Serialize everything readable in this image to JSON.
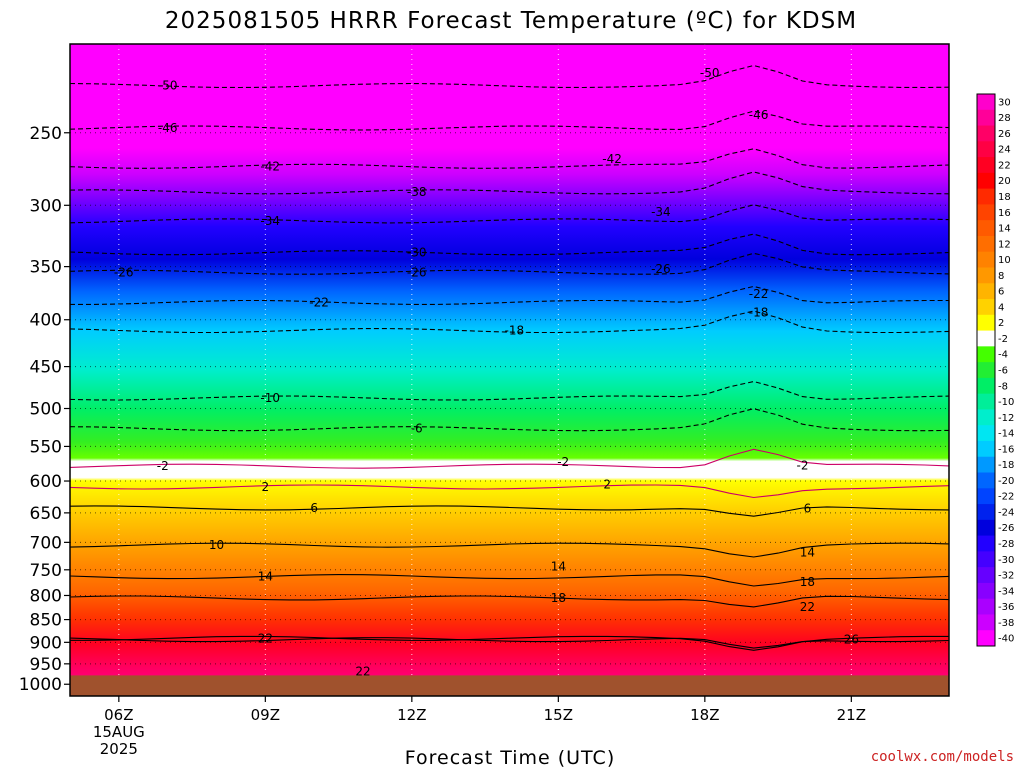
{
  "chart_data": {
    "type": "heatmap",
    "title": "2025081505 HRRR Forecast Temperature (ºC) for KDSM",
    "xlabel": "Forecast Time (UTC)",
    "ylabel": "",
    "credit": "coolwx.com/models",
    "x_ticks": [
      {
        "hour": 6,
        "label": "06Z",
        "sub": [
          "15AUG",
          "2025"
        ]
      },
      {
        "hour": 9,
        "label": "09Z",
        "sub": []
      },
      {
        "hour": 12,
        "label": "12Z",
        "sub": []
      },
      {
        "hour": 15,
        "label": "15Z",
        "sub": []
      },
      {
        "hour": 18,
        "label": "18Z",
        "sub": []
      },
      {
        "hour": 21,
        "label": "21Z",
        "sub": []
      }
    ],
    "xlim": [
      5,
      23
    ],
    "y_ticks": [
      "250",
      "300",
      "350",
      "400",
      "450",
      "500",
      "550",
      "600",
      "650",
      "700",
      "750",
      "800",
      "850",
      "900",
      "950",
      "1000"
    ],
    "ylim": [
      200,
      1030
    ],
    "y_scale": "log-pressure",
    "surface_pressure": 978,
    "colorbar_ticks": [
      "30",
      "28",
      "26",
      "24",
      "22",
      "20",
      "18",
      "16",
      "14",
      "12",
      "10",
      "8",
      "6",
      "4",
      "2",
      "-2",
      "-4",
      "-6",
      "-8",
      "-10",
      "-12",
      "-14",
      "-16",
      "-18",
      "-20",
      "-22",
      "-24",
      "-26",
      "-28",
      "-30",
      "-32",
      "-34",
      "-36",
      "-38",
      "-40"
    ],
    "colorbar_colors": [
      "#ff00cc",
      "#ff0099",
      "#ff0066",
      "#ff0044",
      "#ff0022",
      "#ff0000",
      "#ff2a00",
      "#ff4400",
      "#ff5a00",
      "#ff6e00",
      "#ff8200",
      "#ff9800",
      "#ffb400",
      "#ffd200",
      "#ffff00",
      "#ffffff",
      "#44ff00",
      "#22ee33",
      "#00ee66",
      "#00ee99",
      "#00eecc",
      "#00e6f2",
      "#00ccff",
      "#0099ff",
      "#0066ff",
      "#0044ff",
      "#0022ee",
      "#0000dd",
      "#2200ff",
      "#4400ff",
      "#6600ff",
      "#8800ff",
      "#aa00ff",
      "#cc00ff",
      "#ff00ff"
    ],
    "contour_labels": [
      {
        "text": "-50",
        "x": 7.0,
        "p": 222
      },
      {
        "text": "-50",
        "x": 18.1,
        "p": 215
      },
      {
        "text": "-46",
        "x": 7.0,
        "p": 247
      },
      {
        "text": "-46",
        "x": 19.1,
        "p": 239
      },
      {
        "text": "-42",
        "x": 9.1,
        "p": 272
      },
      {
        "text": "-42",
        "x": 16.1,
        "p": 267
      },
      {
        "text": "-38",
        "x": 12.1,
        "p": 290
      },
      {
        "text": "-34",
        "x": 9.1,
        "p": 312
      },
      {
        "text": "-34",
        "x": 17.1,
        "p": 305
      },
      {
        "text": "-30",
        "x": 12.1,
        "p": 338
      },
      {
        "text": "-26",
        "x": 6.1,
        "p": 355
      },
      {
        "text": "-26",
        "x": 12.1,
        "p": 355
      },
      {
        "text": "-26",
        "x": 17.1,
        "p": 352
      },
      {
        "text": "-22",
        "x": 10.1,
        "p": 383
      },
      {
        "text": "-22",
        "x": 19.1,
        "p": 375
      },
      {
        "text": "-18",
        "x": 14.1,
        "p": 411
      },
      {
        "text": "-18",
        "x": 19.1,
        "p": 393
      },
      {
        "text": "-10",
        "x": 9.1,
        "p": 487
      },
      {
        "text": "-6",
        "x": 12.1,
        "p": 526
      },
      {
        "text": "-2",
        "x": 6.9,
        "p": 578
      },
      {
        "text": "-2",
        "x": 15.1,
        "p": 572
      },
      {
        "text": "-2",
        "x": 20.0,
        "p": 577
      },
      {
        "text": "2",
        "x": 9.0,
        "p": 609
      },
      {
        "text": "2",
        "x": 16.0,
        "p": 605
      },
      {
        "text": "6",
        "x": 10.0,
        "p": 642
      },
      {
        "text": "6",
        "x": 20.1,
        "p": 643
      },
      {
        "text": "10",
        "x": 8.0,
        "p": 705
      },
      {
        "text": "14",
        "x": 9.0,
        "p": 763
      },
      {
        "text": "14",
        "x": 15.0,
        "p": 744
      },
      {
        "text": "14",
        "x": 20.1,
        "p": 718
      },
      {
        "text": "18",
        "x": 15.0,
        "p": 805
      },
      {
        "text": "18",
        "x": 20.1,
        "p": 773
      },
      {
        "text": "22",
        "x": 9.0,
        "p": 891
      },
      {
        "text": "22",
        "x": 20.1,
        "p": 824
      },
      {
        "text": "22",
        "x": 11.0,
        "p": 969
      },
      {
        "text": "26",
        "x": 21.0,
        "p": 894
      }
    ]
  }
}
